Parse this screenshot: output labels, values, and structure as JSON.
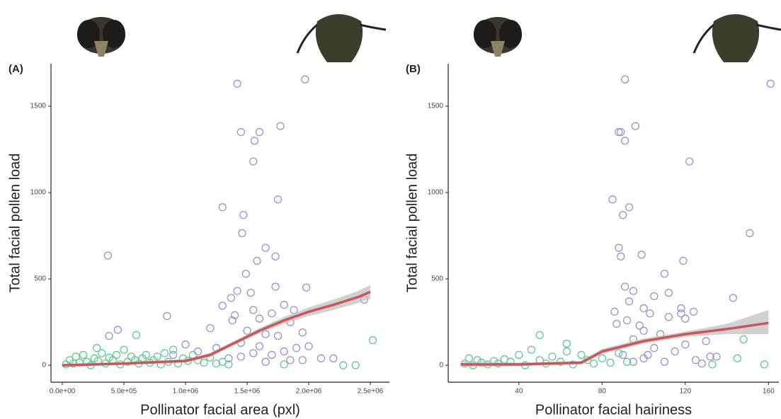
{
  "chart_data": [
    {
      "type": "scatter",
      "panel_label": "(A)",
      "x_label": "Pollinator facial area (pxl)",
      "y_label": "Total facial pollen load",
      "xlim": [
        -92000,
        2655000
      ],
      "ylim": [
        -98,
        1746
      ],
      "xticks": [
        {
          "value": 0,
          "label": "0.0e+00"
        },
        {
          "value": 500000,
          "label": "5.0e+05"
        },
        {
          "value": 1000000,
          "label": "1.0e+06"
        },
        {
          "value": 1500000,
          "label": "1.5e+06"
        },
        {
          "value": 2000000,
          "label": "2.0e+06"
        },
        {
          "value": 2500000,
          "label": "2.5e+06"
        }
      ],
      "yticks": [
        0,
        500,
        1000,
        1500
      ],
      "series": [
        {
          "color": "#9b8fd0",
          "x": [
            1420000,
            1970000,
            1450000,
            1600000,
            1770000,
            1560000,
            1550000,
            1750000,
            1300000,
            1470000,
            1460000,
            1650000,
            370000,
            1730000,
            1580000,
            1490000,
            1980000,
            1730000,
            1420000,
            1530000,
            1370000,
            1300000,
            1800000,
            1880000,
            1550000,
            1700000,
            1400000,
            1600000,
            1850000,
            1380000,
            850000,
            1200000,
            1500000,
            450000,
            380000,
            1950000,
            1650000,
            1750000,
            1450000,
            1600000,
            1900000,
            2000000,
            1800000,
            1550000,
            1700000,
            2100000,
            1450000,
            1650000,
            1850000,
            1000000,
            1100000,
            900000,
            1250000,
            2450000,
            2200000,
            1350000,
            1950000
          ],
          "values": [
            1630,
            1655,
            1350,
            1350,
            1385,
            1300,
            1180,
            960,
            915,
            870,
            765,
            680,
            635,
            630,
            605,
            530,
            450,
            455,
            430,
            420,
            390,
            345,
            350,
            320,
            320,
            300,
            290,
            270,
            250,
            260,
            285,
            215,
            200,
            205,
            170,
            190,
            180,
            170,
            130,
            110,
            100,
            110,
            80,
            70,
            60,
            40,
            50,
            20,
            30,
            120,
            80,
            60,
            100,
            380,
            40,
            40,
            30
          ]
        },
        {
          "color": "#5ec994",
          "x": [
            30000,
            60000,
            90000,
            110000,
            140000,
            170000,
            200000,
            230000,
            260000,
            290000,
            320000,
            350000,
            380000,
            410000,
            440000,
            470000,
            500000,
            530000,
            560000,
            590000,
            620000,
            650000,
            680000,
            710000,
            740000,
            770000,
            800000,
            830000,
            860000,
            900000,
            940000,
            980000,
            1020000,
            1060000,
            1100000,
            1150000,
            1200000,
            1250000,
            1300000,
            1350000,
            2520000,
            2380000,
            2280000,
            600000,
            280000,
            1800000
          ],
          "values": [
            5,
            30,
            10,
            50,
            15,
            60,
            20,
            0,
            40,
            25,
            70,
            10,
            45,
            30,
            60,
            5,
            90,
            20,
            50,
            30,
            10,
            40,
            60,
            15,
            30,
            50,
            5,
            70,
            20,
            90,
            10,
            40,
            25,
            60,
            30,
            15,
            45,
            10,
            20,
            5,
            145,
            0,
            0,
            175,
            100,
            5
          ]
        }
      ],
      "trend": {
        "color": "#c8575a",
        "band_color": "#bdbdbd",
        "x": [
          0,
          500000,
          1000000,
          1200000,
          1400000,
          1600000,
          1800000,
          2000000,
          2200000,
          2400000,
          2500000
        ],
        "values": [
          0,
          10,
          25,
          60,
          130,
          200,
          260,
          310,
          350,
          395,
          425
        ],
        "lower": [
          -10,
          2,
          15,
          48,
          118,
          185,
          240,
          285,
          320,
          360,
          385
        ],
        "upper": [
          10,
          18,
          35,
          72,
          142,
          215,
          280,
          335,
          380,
          430,
          465
        ]
      }
    },
    {
      "type": "scatter",
      "panel_label": "(B)",
      "x_label": "Pollinator facial hairiness",
      "y_label": "Total facial pollen load",
      "xlim": [
        6,
        165
      ],
      "ylim": [
        -98,
        1746
      ],
      "xticks": [
        40,
        80,
        120,
        160
      ],
      "yticks": [
        0,
        500,
        1000,
        1500
      ],
      "series": [
        {
          "color": "#9b8fd0",
          "x": [
            91,
            161,
            88,
            89,
            96,
            91,
            122,
            85,
            93,
            90,
            151,
            88,
            99,
            89,
            119,
            110,
            91,
            95,
            143,
            105,
            112,
            86,
            100,
            118,
            124,
            92,
            112,
            118,
            130,
            100,
            108,
            95,
            120,
            105,
            115,
            90,
            100,
            125,
            110,
            95,
            128,
            135,
            102,
            98,
            103,
            87,
            93,
            120,
            132
          ],
          "values": [
            1655,
            1630,
            1350,
            1350,
            1385,
            1300,
            1180,
            960,
            915,
            870,
            765,
            680,
            640,
            630,
            605,
            530,
            455,
            430,
            390,
            400,
            420,
            310,
            330,
            330,
            310,
            260,
            280,
            300,
            140,
            200,
            180,
            150,
            120,
            100,
            80,
            60,
            40,
            30,
            20,
            20,
            10,
            50,
            60,
            230,
            300,
            240,
            370,
            270,
            50
          ]
        },
        {
          "color": "#5ec994",
          "x": [
            14,
            16,
            18,
            20,
            22,
            25,
            28,
            30,
            33,
            36,
            40,
            43,
            46,
            50,
            53,
            56,
            60,
            63,
            66,
            70,
            73,
            76,
            80,
            84,
            88,
            92,
            50,
            63,
            148,
            158,
            133,
            145
          ],
          "values": [
            10,
            40,
            0,
            30,
            15,
            5,
            25,
            10,
            35,
            20,
            60,
            0,
            90,
            30,
            10,
            50,
            20,
            80,
            5,
            60,
            30,
            10,
            40,
            15,
            70,
            20,
            175,
            125,
            150,
            5,
            5,
            40
          ]
        }
      ],
      "trend": {
        "color": "#c8575a",
        "band_color": "#bdbdbd",
        "x": [
          12,
          40,
          70,
          80,
          90,
          100,
          120,
          140,
          160
        ],
        "values": [
          5,
          5,
          15,
          80,
          110,
          140,
          180,
          210,
          245
        ],
        "lower": [
          -10,
          -5,
          5,
          65,
          95,
          125,
          165,
          180,
          180
        ],
        "upper": [
          25,
          15,
          25,
          95,
          125,
          155,
          195,
          240,
          320
        ]
      }
    }
  ]
}
